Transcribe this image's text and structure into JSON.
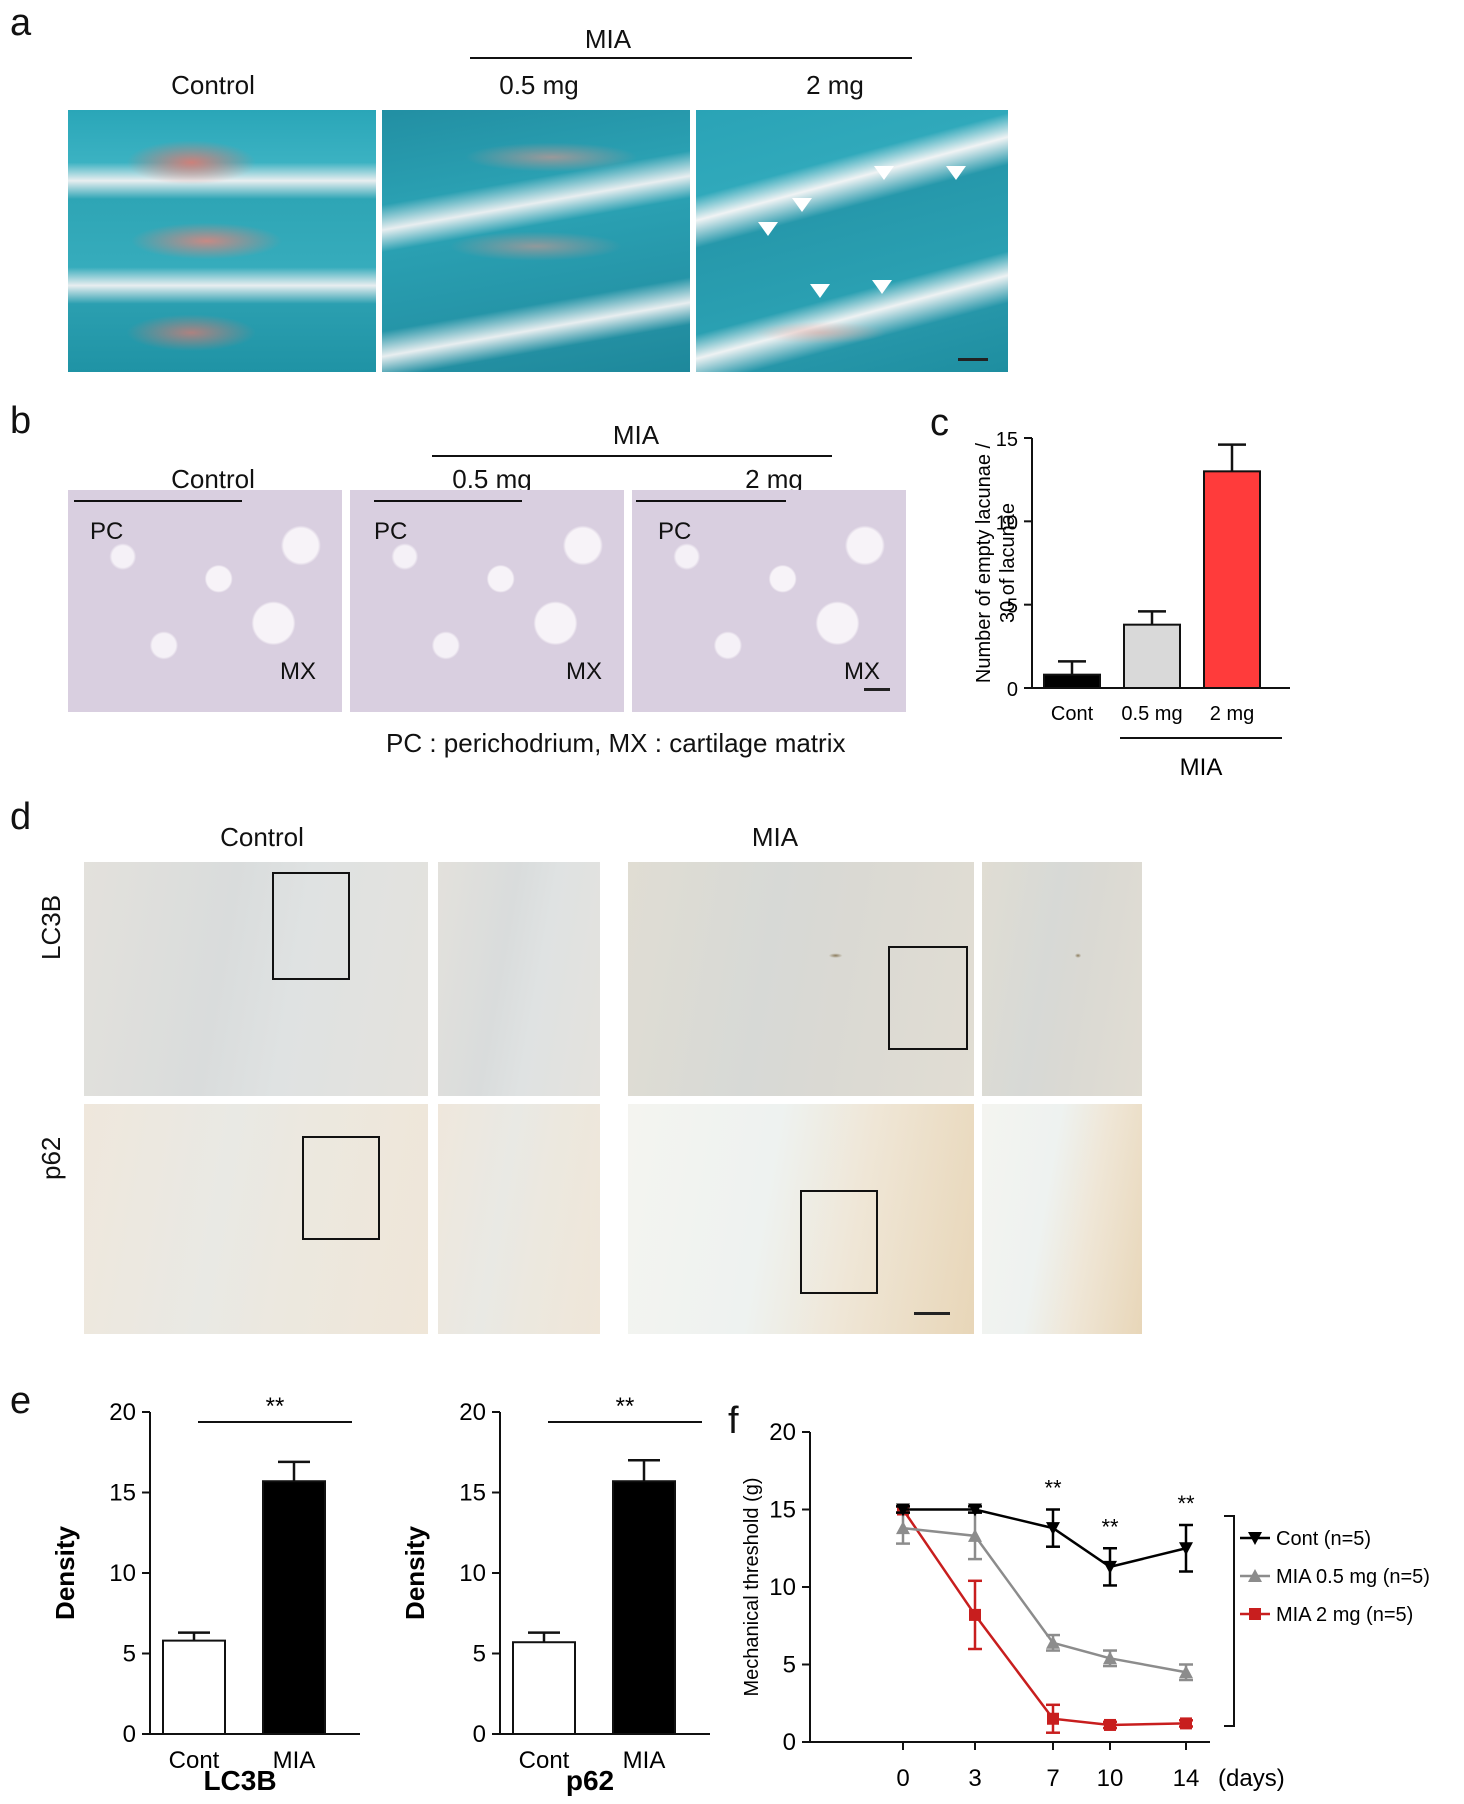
{
  "panels": {
    "a": {
      "letter": "a",
      "group_label": "MIA",
      "labels": [
        "Control",
        "0.5 mg",
        "2 mg"
      ]
    },
    "b": {
      "letter": "b",
      "group_label": "MIA",
      "labels": [
        "Control",
        "0.5 mg",
        "2 mg"
      ],
      "region_labels": {
        "pc": "PC",
        "mx": "MX"
      },
      "caption": "PC : perichodrium, MX : cartilage matrix"
    },
    "d": {
      "letter": "d",
      "col_labels": [
        "Control",
        "MIA"
      ],
      "row_labels": [
        "LC3B",
        "p62"
      ]
    },
    "c_letter": "c",
    "e_letter": "e",
    "f_letter": "f"
  },
  "chart_data": [
    {
      "id": "c",
      "type": "bar",
      "ylabel": "Number of empty lacunae / 30 of lacunae",
      "ylim": [
        0,
        15
      ],
      "yticks": [
        0,
        5,
        10,
        15
      ],
      "categories": [
        "Cont",
        "0.5 mg",
        "2 mg"
      ],
      "values": [
        0.8,
        3.8,
        13.0
      ],
      "errors": [
        0.8,
        0.8,
        1.6
      ],
      "colors": [
        "#000000",
        "#d9d9d9",
        "#ff3b3b"
      ],
      "group_label": "MIA"
    },
    {
      "id": "e1",
      "type": "bar",
      "title": "LC3B",
      "ylabel": "Density",
      "ylim": [
        0,
        20
      ],
      "yticks": [
        0,
        5,
        10,
        15,
        20
      ],
      "categories": [
        "Cont",
        "MIA"
      ],
      "values": [
        5.8,
        15.7
      ],
      "errors": [
        0.5,
        1.2
      ],
      "colors": [
        "#ffffff",
        "#000000"
      ],
      "significance": "**"
    },
    {
      "id": "e2",
      "type": "bar",
      "title": "p62",
      "ylabel": "Density",
      "ylim": [
        0,
        20
      ],
      "yticks": [
        0,
        5,
        10,
        15,
        20
      ],
      "categories": [
        "Cont",
        "MIA"
      ],
      "values": [
        5.7,
        15.7
      ],
      "errors": [
        0.6,
        1.3
      ],
      "colors": [
        "#ffffff",
        "#000000"
      ],
      "significance": "**"
    },
    {
      "id": "f",
      "type": "line",
      "ylabel": "Mechanical threshold (g)",
      "xlabel": "(days)",
      "ylim": [
        0,
        20
      ],
      "yticks": [
        0,
        5,
        10,
        15,
        20
      ],
      "x": [
        "0",
        "3",
        "7",
        "10",
        "14"
      ],
      "series": [
        {
          "name": "Cont (n=5)",
          "color": "#000000",
          "marker": "triangle-down",
          "values": [
            15,
            15,
            13.8,
            11.3,
            12.5
          ],
          "errors": [
            0.2,
            0.2,
            1.2,
            1.2,
            1.5
          ]
        },
        {
          "name": "MIA 0.5 mg (n=5)",
          "color": "#8c8c8c",
          "marker": "triangle-up",
          "values": [
            13.8,
            13.3,
            6.4,
            5.4,
            4.5
          ],
          "errors": [
            1.0,
            1.5,
            0.5,
            0.5,
            0.5
          ]
        },
        {
          "name": "MIA 2 mg (n=5)",
          "color": "#c81e1e",
          "marker": "square",
          "values": [
            15,
            8.2,
            1.5,
            1.1,
            1.2
          ],
          "errors": [
            0.2,
            2.2,
            0.9,
            0.2,
            0.2
          ]
        }
      ],
      "annotations": [
        {
          "x": "7",
          "text": "**"
        },
        {
          "x": "10",
          "text": "**"
        },
        {
          "x": "14",
          "text": "**"
        }
      ]
    }
  ]
}
